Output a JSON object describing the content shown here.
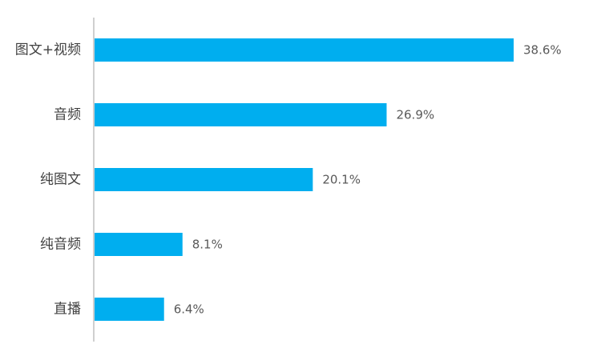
{
  "chart_data": {
    "type": "bar",
    "orientation": "horizontal",
    "categories": [
      "图文+视频",
      "音频",
      "纯图文",
      "纯音频",
      "直播"
    ],
    "values": [
      38.6,
      26.9,
      20.1,
      8.1,
      6.4
    ],
    "value_labels": [
      "38.6%",
      "26.9%",
      "20.1%",
      "8.1%",
      "6.4%"
    ],
    "unit": "%",
    "title": "",
    "xlabel": "",
    "ylabel": "",
    "xlim": [
      0,
      40
    ],
    "grid": false,
    "legend": "none",
    "bar_color": "#00AEEF",
    "axis_color": "#BFBFBF"
  }
}
